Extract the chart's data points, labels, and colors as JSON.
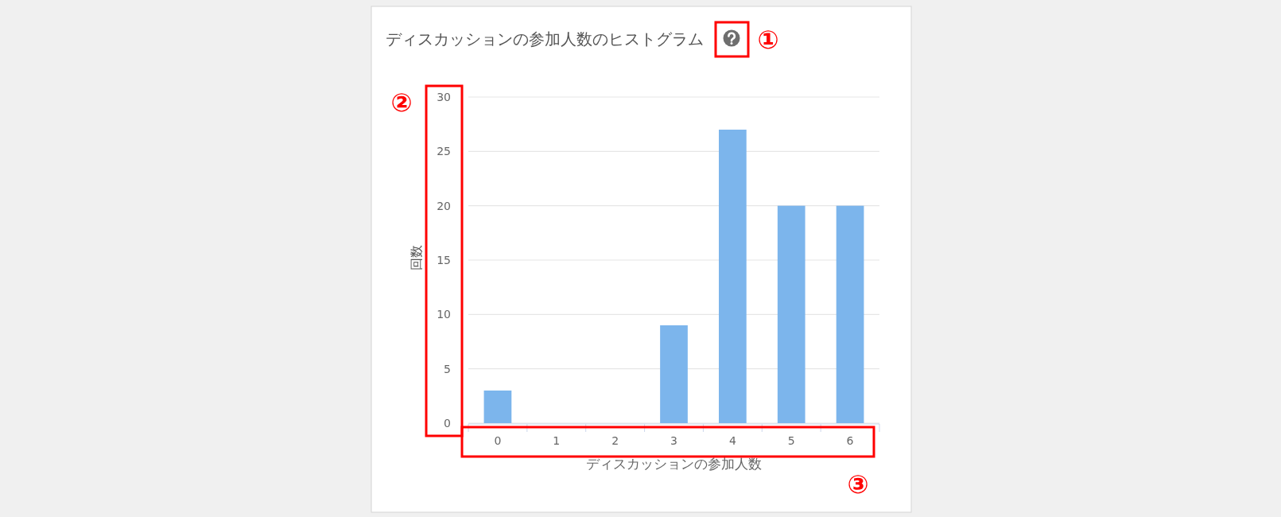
{
  "chart_data": {
    "type": "bar",
    "title": "ディスカッションの参加人数のヒストグラム",
    "xlabel": "ディスカッションの参加人数",
    "ylabel": "回数",
    "categories": [
      "0",
      "1",
      "2",
      "3",
      "4",
      "5",
      "6"
    ],
    "values": [
      3,
      0,
      0,
      9,
      27,
      20,
      20
    ],
    "color": "#7cb5ec",
    "ylim": [
      0,
      30
    ],
    "yticks": [
      0,
      5,
      10,
      15,
      20,
      25,
      30
    ],
    "grid": "y",
    "annotations": [
      "①",
      "②",
      "③"
    ]
  }
}
